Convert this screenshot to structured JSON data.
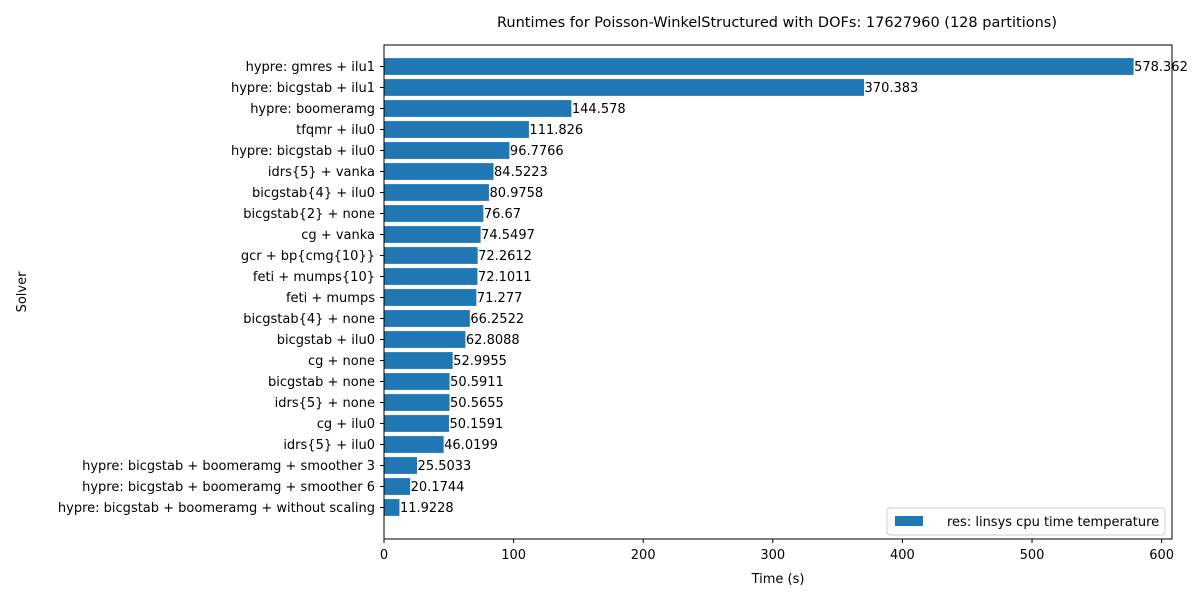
{
  "chart_data": {
    "type": "bar",
    "orientation": "horizontal",
    "title": "Runtimes for Poisson-WinkelStructured with DOFs: 17627960 (128 partitions)",
    "xlabel": "Time (s)",
    "ylabel": "Solver",
    "xlim": [
      0,
      608
    ],
    "xticks": [
      0,
      100,
      200,
      300,
      400,
      500,
      600
    ],
    "grid": false,
    "legend_position": "lower-right",
    "bar_color": "#1f77b4",
    "series": [
      {
        "name": "res: linsys cpu time temperature",
        "categories": [
          "hypre: gmres + ilu1",
          "hypre: bicgstab + ilu1",
          "hypre: boomeramg",
          "tfqmr + ilu0",
          "hypre: bicgstab + ilu0",
          "idrs{5} + vanka",
          "bicgstab{4} + ilu0",
          "bicgstab{2} + none",
          "cg + vanka",
          "gcr + bp{cmg{10}}",
          "feti + mumps{10}",
          "feti + mumps",
          "bicgstab{4} + none",
          "bicgstab + ilu0",
          "cg + none",
          "bicgstab + none",
          "idrs{5} + none",
          "cg + ilu0",
          "idrs{5} + ilu0",
          "hypre: bicgstab + boomeramg + smoother 3",
          "hypre: bicgstab + boomeramg + smoother 6",
          "hypre: bicgstab + boomeramg + without scaling"
        ],
        "values": [
          578.362,
          370.383,
          144.578,
          111.826,
          96.7766,
          84.5223,
          80.9758,
          76.67,
          74.5497,
          72.2612,
          72.1011,
          71.277,
          66.2522,
          62.8088,
          52.9955,
          50.5911,
          50.5655,
          50.1591,
          46.0199,
          25.5033,
          20.1744,
          11.9228
        ],
        "value_labels": [
          "578.362",
          "370.383",
          "144.578",
          "111.826",
          "96.7766",
          "84.5223",
          "80.9758",
          "76.67",
          "74.5497",
          "72.2612",
          "72.1011",
          "71.277",
          "66.2522",
          "62.8088",
          "52.9955",
          "50.5911",
          "50.5655",
          "50.1591",
          "46.0199",
          "25.5033",
          "20.1744",
          "11.9228"
        ]
      }
    ]
  }
}
